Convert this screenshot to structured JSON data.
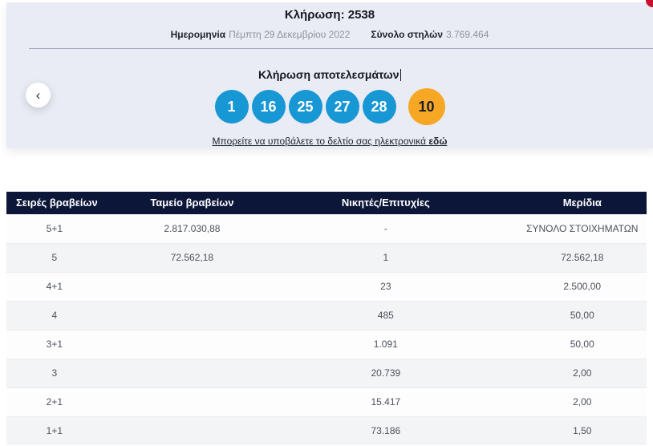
{
  "draw": {
    "title": "Κλήρωση: 2538",
    "date_label": "Ημερομηνία",
    "date_value": "Πέμπτη 29 Δεκεμβρίου 2022",
    "columns_label": "Σύνολο στηλών",
    "columns_value": "3.769.464",
    "results_heading": "Κλήρωση αποτελεσμάτων",
    "numbers": [
      "1",
      "16",
      "25",
      "27",
      "28"
    ],
    "bonus_number": "10",
    "submit_text": "Μπορείτε να υποβάλετε το δελτίο σας ηλεκτρονικά ",
    "submit_link_text": "εδώ",
    "prev_arrow": "‹"
  },
  "table": {
    "headers": [
      "Σειρές βραβείων",
      "Ταμείο βραβείων",
      "Νικητές/Επιτυχίες",
      "Μερίδια"
    ],
    "rows": [
      [
        "5+1",
        "2.817.030,88",
        "-",
        "ΣΥΝΟΛΟ ΣΤΟΙΧΗΜΑΤΩΝ"
      ],
      [
        "5",
        "72.562,18",
        "1",
        "72.562,18"
      ],
      [
        "4+1",
        "",
        "23",
        "2.500,00"
      ],
      [
        "4",
        "",
        "485",
        "50,00"
      ],
      [
        "3+1",
        "",
        "1.091",
        "50,00"
      ],
      [
        "3",
        "",
        "20.739",
        "2,00"
      ],
      [
        "2+1",
        "",
        "15.417",
        "2,00"
      ],
      [
        "1+1",
        "",
        "73.186",
        "1,50"
      ]
    ]
  },
  "colors": {
    "panel_background": "#e9ecf4",
    "ball_blue": "#1797d4",
    "ball_bonus_orange": "#f6a723",
    "table_header_navy": "#0c1638",
    "alt_row_gray": "#f3f4f6",
    "corner_red": "#c8102e"
  }
}
